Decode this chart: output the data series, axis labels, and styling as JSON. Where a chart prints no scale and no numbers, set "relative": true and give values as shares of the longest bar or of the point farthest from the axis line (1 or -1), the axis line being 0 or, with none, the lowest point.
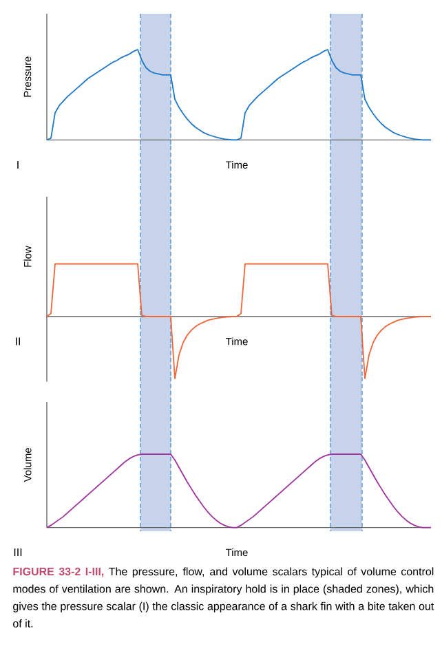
{
  "chart_data": [
    {
      "type": "line",
      "relative": true,
      "ylabel": "Pressure",
      "xlabel": "Time",
      "annotations": [
        "I"
      ],
      "categories": [
        null,
        null,
        null,
        null,
        null,
        null,
        null,
        null,
        null,
        null,
        null,
        null,
        null,
        null,
        null,
        null,
        null,
        null,
        null,
        null,
        null,
        null,
        null,
        null,
        null,
        null,
        null,
        null,
        null,
        null,
        null,
        null,
        null,
        null,
        null,
        null,
        null,
        null,
        null,
        null,
        null,
        null,
        null,
        null,
        null,
        null,
        null,
        null,
        null,
        null,
        null,
        null,
        null,
        null,
        null,
        null,
        null,
        null,
        null,
        null,
        null,
        null,
        null,
        null,
        null,
        null,
        null,
        null,
        null,
        null,
        null,
        null,
        null,
        null,
        null,
        null,
        null,
        null,
        null,
        null,
        null,
        null,
        null,
        null,
        null,
        null,
        null,
        null,
        null,
        null,
        null,
        null,
        null,
        null
      ],
      "series": [
        {
          "color": "#1f78c8",
          "values": [
            0,
            0.02,
            0.3,
            0.38,
            0.43,
            0.48,
            0.52,
            0.56,
            0.6,
            0.64,
            0.68,
            0.71,
            0.74,
            0.77,
            0.8,
            0.83,
            0.86,
            0.88,
            0.91,
            0.93,
            0.95,
            0.98,
            1,
            0.88,
            0.8,
            0.76,
            0.74,
            0.73,
            0.72,
            0.72,
            0.72,
            0.45,
            0.36,
            0.29,
            0.23,
            0.18,
            0.14,
            0.11,
            0.08,
            0.06,
            0.045,
            0.03,
            0.02,
            0.01,
            0.005,
            0,
            0,
            0.02,
            0.3,
            0.38,
            0.43,
            0.48,
            0.52,
            0.56,
            0.6,
            0.64,
            0.68,
            0.71,
            0.74,
            0.77,
            0.8,
            0.83,
            0.86,
            0.88,
            0.91,
            0.93,
            0.95,
            0.98,
            1,
            0.88,
            0.8,
            0.76,
            0.74,
            0.73,
            0.72,
            0.72,
            0.72,
            0.45,
            0.36,
            0.29,
            0.23,
            0.18,
            0.14,
            0.11,
            0.08,
            0.06,
            0.045,
            0.03,
            0.02,
            0.01,
            0.005,
            0,
            0,
            0
          ]
        }
      ]
    },
    {
      "type": "line",
      "relative": true,
      "ylabel": "Flow",
      "xlabel": "Time",
      "annotations": [
        "II"
      ],
      "categories": [
        null,
        null,
        null,
        null,
        null,
        null,
        null,
        null,
        null,
        null,
        null,
        null,
        null,
        null,
        null,
        null,
        null,
        null,
        null,
        null,
        null,
        null,
        null,
        null,
        null,
        null,
        null,
        null,
        null,
        null,
        null,
        null,
        null,
        null,
        null,
        null,
        null,
        null,
        null,
        null,
        null,
        null,
        null,
        null,
        null,
        null,
        null,
        null,
        null,
        null,
        null,
        null,
        null,
        null,
        null,
        null,
        null,
        null,
        null,
        null,
        null,
        null,
        null,
        null,
        null,
        null,
        null,
        null,
        null,
        null,
        null,
        null,
        null,
        null,
        null,
        null,
        null,
        null,
        null,
        null,
        null,
        null,
        null,
        null,
        null,
        null,
        null,
        null,
        null,
        null,
        null,
        null,
        null,
        null
      ],
      "series": [
        {
          "color": "#f0653a",
          "values": [
            0,
            0.05,
            0.85,
            0.85,
            0.85,
            0.85,
            0.85,
            0.85,
            0.85,
            0.85,
            0.85,
            0.85,
            0.85,
            0.85,
            0.85,
            0.85,
            0.85,
            0.85,
            0.85,
            0.85,
            0.85,
            0.85,
            0.85,
            0.02,
            0,
            0,
            0,
            0,
            0,
            0,
            0,
            -1,
            -0.62,
            -0.42,
            -0.3,
            -0.22,
            -0.16,
            -0.12,
            -0.09,
            -0.06,
            -0.045,
            -0.03,
            -0.02,
            -0.01,
            -0.005,
            0,
            0,
            0.05,
            0.85,
            0.85,
            0.85,
            0.85,
            0.85,
            0.85,
            0.85,
            0.85,
            0.85,
            0.85,
            0.85,
            0.85,
            0.85,
            0.85,
            0.85,
            0.85,
            0.85,
            0.85,
            0.85,
            0.85,
            0.85,
            0.02,
            0,
            0,
            0,
            0,
            0,
            0,
            0,
            -1,
            -0.62,
            -0.42,
            -0.3,
            -0.22,
            -0.16,
            -0.12,
            -0.09,
            -0.06,
            -0.045,
            -0.03,
            -0.02,
            -0.01,
            -0.005,
            0,
            0,
            0
          ]
        }
      ]
    },
    {
      "type": "line",
      "relative": true,
      "ylabel": "Volume",
      "xlabel": "Time",
      "annotations": [
        "III",
        "FIGURE 33-2 I-III,",
        "The pressure, flow, and volume scalars typical of volume control modes of ventilation are shown. An inspiratory hold is in place (shaded zones), which gives the pressure scalar (I) the classic appearance of a shark fin with a bite taken out of it."
      ],
      "categories": [
        null,
        null,
        null,
        null,
        null,
        null,
        null,
        null,
        null,
        null,
        null,
        null,
        null,
        null,
        null,
        null,
        null,
        null,
        null,
        null,
        null,
        null,
        null,
        null,
        null,
        null,
        null,
        null,
        null,
        null,
        null,
        null,
        null,
        null,
        null,
        null,
        null,
        null,
        null,
        null,
        null,
        null,
        null,
        null,
        null,
        null,
        null,
        null,
        null,
        null,
        null,
        null,
        null,
        null,
        null,
        null,
        null,
        null,
        null,
        null,
        null,
        null,
        null,
        null,
        null,
        null,
        null,
        null,
        null,
        null,
        null,
        null,
        null,
        null,
        null,
        null,
        null,
        null,
        null,
        null,
        null,
        null,
        null,
        null,
        null,
        null,
        null,
        null,
        null,
        null,
        null,
        null,
        null,
        null
      ],
      "series": [
        {
          "color": "#a0329e",
          "values": [
            0,
            0.03,
            0.07,
            0.11,
            0.15,
            0.2,
            0.25,
            0.3,
            0.35,
            0.4,
            0.45,
            0.5,
            0.55,
            0.6,
            0.65,
            0.7,
            0.75,
            0.8,
            0.85,
            0.9,
            0.94,
            0.97,
            0.99,
            1,
            1,
            1,
            1,
            1,
            1,
            1,
            1,
            0.92,
            0.82,
            0.72,
            0.62,
            0.53,
            0.44,
            0.36,
            0.28,
            0.21,
            0.15,
            0.1,
            0.06,
            0.03,
            0.01,
            0,
            0,
            0.03,
            0.07,
            0.11,
            0.15,
            0.2,
            0.25,
            0.3,
            0.35,
            0.4,
            0.45,
            0.5,
            0.55,
            0.6,
            0.65,
            0.7,
            0.75,
            0.8,
            0.85,
            0.9,
            0.94,
            0.97,
            0.99,
            1,
            1,
            1,
            1,
            1,
            1,
            1,
            1,
            0.92,
            0.82,
            0.72,
            0.62,
            0.53,
            0.44,
            0.36,
            0.28,
            0.21,
            0.15,
            0.1,
            0.06,
            0.03,
            0.01,
            0,
            0,
            0
          ]
        }
      ]
    }
  ]
}
